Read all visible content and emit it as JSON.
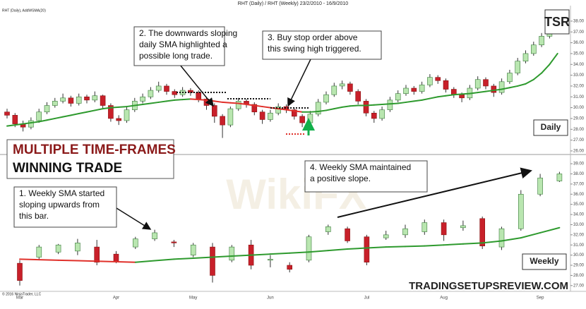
{
  "header": "RHT (Daily) / RHT (Weekly)  23/2/2010 - 16/9/2010",
  "banner": [
    "MULTIPLE TIME-FRAMES",
    "WINNING TRADE"
  ],
  "logo": "TSR",
  "footer": "TRADINGSETUPSREVIEW.COM",
  "copyright": "© 2016 NinjaTrader, LLC",
  "watermark": "WikiFX",
  "chart_data": [
    {
      "type": "candlestick",
      "subtitle": "RHT (Daily), AddWSMA(20)",
      "panel_label": "Daily",
      "up_color": "#b9e6b0",
      "down_color": "#c8202a",
      "sma_up_color": "#2e9a2e",
      "sma_down_color": "#e0302a",
      "ylim": [
        25.8,
        39.3
      ],
      "yticks": [
        {
          "value": 26,
          "label": "26.00"
        },
        {
          "value": 27,
          "label": "27.00"
        },
        {
          "value": 28,
          "label": "28.00"
        },
        {
          "value": 29,
          "label": "29.00"
        },
        {
          "value": 30,
          "label": "30.00"
        },
        {
          "value": 31,
          "label": "31.00"
        },
        {
          "value": 32,
          "label": "32.00"
        },
        {
          "value": 33,
          "label": "33.00"
        },
        {
          "value": 34,
          "label": "34.00"
        },
        {
          "value": 35,
          "label": "35.00"
        },
        {
          "value": 36,
          "label": "36.00"
        },
        {
          "value": 37,
          "label": "37.00"
        },
        {
          "value": 38,
          "label": "38.00"
        }
      ],
      "candles": [
        [
          29.6,
          29.9,
          29.0,
          29.3
        ],
        [
          29.3,
          29.5,
          28.2,
          28.5
        ],
        [
          28.5,
          28.8,
          27.8,
          28.2
        ],
        [
          28.2,
          29.1,
          28.0,
          28.8
        ],
        [
          28.8,
          29.9,
          28.6,
          29.6
        ],
        [
          29.6,
          30.5,
          29.4,
          30.2
        ],
        [
          30.2,
          30.9,
          30.0,
          30.6
        ],
        [
          30.6,
          31.3,
          30.4,
          30.9
        ],
        [
          30.9,
          31.1,
          30.1,
          30.4
        ],
        [
          30.4,
          31.3,
          30.2,
          31.0
        ],
        [
          31.0,
          31.2,
          30.4,
          30.7
        ],
        [
          30.7,
          31.5,
          30.5,
          31.1
        ],
        [
          31.1,
          31.2,
          29.9,
          30.2
        ],
        [
          30.2,
          30.4,
          28.7,
          29.0
        ],
        [
          29.0,
          29.3,
          28.4,
          28.8
        ],
        [
          28.8,
          30.1,
          28.6,
          29.8
        ],
        [
          29.8,
          30.9,
          29.6,
          30.6
        ],
        [
          30.6,
          31.3,
          30.4,
          31.0
        ],
        [
          31.0,
          31.9,
          30.8,
          31.6
        ],
        [
          31.6,
          32.4,
          31.4,
          32.0
        ],
        [
          32.0,
          32.2,
          31.2,
          31.5
        ],
        [
          31.5,
          31.7,
          30.9,
          31.2
        ],
        [
          31.2,
          31.9,
          31.0,
          31.6
        ],
        [
          31.6,
          31.8,
          31.1,
          31.4
        ],
        [
          31.4,
          31.6,
          30.5,
          30.8
        ],
        [
          30.8,
          31.0,
          29.8,
          30.2
        ],
        [
          30.2,
          30.4,
          28.6,
          29.2
        ],
        [
          29.2,
          29.4,
          27.2,
          28.4
        ],
        [
          28.4,
          30.1,
          28.2,
          29.9
        ],
        [
          29.9,
          30.9,
          29.7,
          30.6
        ],
        [
          30.6,
          30.8,
          30.0,
          30.3
        ],
        [
          30.3,
          30.5,
          29.3,
          29.6
        ],
        [
          29.6,
          29.8,
          28.5,
          28.9
        ],
        [
          28.9,
          29.8,
          28.7,
          29.5
        ],
        [
          29.5,
          30.4,
          29.3,
          30.1
        ],
        [
          30.1,
          30.3,
          29.5,
          29.8
        ],
        [
          29.8,
          30.0,
          28.9,
          29.2
        ],
        [
          29.2,
          29.4,
          28.2,
          28.6
        ],
        [
          28.6,
          29.7,
          28.4,
          29.4
        ],
        [
          29.4,
          30.8,
          29.2,
          30.5
        ],
        [
          30.5,
          31.5,
          30.3,
          31.2
        ],
        [
          31.2,
          32.3,
          31.0,
          32.0
        ],
        [
          32.0,
          32.5,
          31.7,
          32.2
        ],
        [
          32.2,
          32.4,
          31.2,
          31.5
        ],
        [
          31.5,
          31.7,
          30.3,
          30.6
        ],
        [
          30.6,
          30.8,
          29.2,
          29.5
        ],
        [
          29.5,
          29.7,
          28.6,
          29.0
        ],
        [
          29.0,
          30.1,
          28.8,
          29.8
        ],
        [
          29.8,
          31.0,
          29.6,
          30.7
        ],
        [
          30.7,
          31.6,
          30.5,
          31.3
        ],
        [
          31.3,
          32.1,
          31.1,
          31.8
        ],
        [
          31.8,
          32.0,
          31.2,
          31.5
        ],
        [
          31.5,
          32.4,
          31.3,
          32.1
        ],
        [
          32.1,
          33.1,
          31.9,
          32.8
        ],
        [
          32.8,
          33.0,
          32.2,
          32.5
        ],
        [
          32.5,
          32.7,
          31.4,
          31.7
        ],
        [
          31.7,
          31.9,
          30.9,
          31.2
        ],
        [
          31.2,
          31.4,
          30.5,
          30.9
        ],
        [
          30.9,
          32.1,
          30.7,
          31.8
        ],
        [
          31.8,
          32.9,
          31.6,
          32.6
        ],
        [
          32.6,
          32.8,
          31.7,
          32.0
        ],
        [
          32.0,
          32.2,
          31.0,
          31.4
        ],
        [
          31.4,
          32.7,
          31.2,
          32.4
        ],
        [
          32.4,
          33.5,
          32.2,
          33.2
        ],
        [
          33.2,
          34.6,
          33.0,
          34.3
        ],
        [
          34.3,
          35.3,
          34.1,
          35.0
        ],
        [
          35.0,
          36.1,
          34.8,
          35.8
        ],
        [
          35.8,
          36.9,
          35.6,
          36.6
        ],
        [
          36.6,
          37.8,
          36.4,
          37.5
        ],
        [
          37.5,
          38.2,
          37.2,
          37.9
        ]
      ],
      "sma": [
        28.3,
        28.4,
        28.5,
        28.6,
        28.7,
        28.85,
        29.0,
        29.15,
        29.3,
        29.45,
        29.6,
        29.75,
        29.9,
        30.0,
        30.05,
        30.1,
        30.2,
        30.3,
        30.4,
        30.5,
        30.6,
        30.7,
        30.75,
        30.8,
        30.75,
        30.7,
        30.6,
        30.5,
        30.45,
        30.4,
        30.3,
        30.2,
        30.1,
        30.0,
        29.9,
        29.8,
        29.7,
        29.6,
        29.6,
        29.65,
        29.75,
        29.9,
        30.05,
        30.15,
        30.2,
        30.2,
        30.25,
        30.3,
        30.35,
        30.4,
        30.5,
        30.6,
        30.7,
        30.85,
        31.0,
        31.1,
        31.2,
        31.25,
        31.3,
        31.4,
        31.5,
        31.6,
        31.7,
        31.85,
        32.0,
        32.2,
        32.6,
        33.2,
        34.0,
        35.0
      ],
      "annotations": [
        [
          "2. The downwards sloping",
          "daily SMA highlighted a",
          "possible long trade."
        ],
        [
          "3. Buy stop order above",
          "this swing high triggered."
        ]
      ]
    },
    {
      "type": "candlestick",
      "panel_label": "Weekly",
      "up_color": "#b9e6b0",
      "down_color": "#c8202a",
      "sma_up_color": "#2e9a2e",
      "sma_down_color": "#e0302a",
      "ylim": [
        26.5,
        39.7
      ],
      "yticks": [
        {
          "value": 27,
          "label": "27.00"
        },
        {
          "value": 28,
          "label": "28.00"
        },
        {
          "value": 29,
          "label": "29.00"
        },
        {
          "value": 30,
          "label": "30.00"
        },
        {
          "value": 31,
          "label": "31.00"
        },
        {
          "value": 32,
          "label": "32.00"
        },
        {
          "value": 33,
          "label": "33.00"
        },
        {
          "value": 34,
          "label": "34.00"
        },
        {
          "value": 35,
          "label": "35.00"
        },
        {
          "value": 36,
          "label": "36.00"
        },
        {
          "value": 37,
          "label": "37.00"
        },
        {
          "value": 38,
          "label": "38.00"
        },
        {
          "value": 39,
          "label": "39.00"
        }
      ],
      "categories": [
        "Mar",
        null,
        null,
        null,
        null,
        "Apr",
        null,
        null,
        null,
        "May",
        null,
        null,
        null,
        "Jun",
        null,
        null,
        null,
        null,
        "Jul",
        null,
        null,
        null,
        "Aug",
        null,
        null,
        null,
        null,
        "Sep",
        null
      ],
      "candles": [
        [
          29.2,
          29.5,
          27.0,
          27.5
        ],
        [
          29.8,
          31.0,
          29.6,
          30.8
        ],
        [
          30.3,
          31.1,
          30.1,
          31.0
        ],
        [
          30.4,
          31.6,
          30.0,
          31.2
        ],
        [
          30.8,
          31.5,
          29.0,
          29.3
        ],
        [
          30.1,
          30.4,
          29.2,
          29.4
        ],
        [
          30.8,
          31.8,
          30.6,
          31.6
        ],
        [
          31.6,
          32.5,
          31.4,
          32.2
        ],
        [
          31.3,
          31.5,
          30.8,
          31.2
        ],
        [
          30.0,
          31.2,
          29.8,
          31.0
        ],
        [
          30.8,
          31.2,
          27.3,
          28.0
        ],
        [
          29.5,
          31.0,
          29.3,
          30.8
        ],
        [
          31.0,
          31.5,
          28.6,
          29.0
        ],
        [
          29.5,
          30.0,
          28.8,
          29.6
        ],
        [
          29.0,
          29.3,
          28.3,
          28.6
        ],
        [
          29.5,
          32.0,
          29.3,
          31.8
        ],
        [
          32.3,
          33.0,
          32.0,
          32.8
        ],
        [
          32.6,
          32.8,
          31.2,
          31.4
        ],
        [
          31.8,
          32.0,
          29.0,
          29.3
        ],
        [
          31.7,
          32.4,
          31.5,
          32.0
        ],
        [
          32.0,
          33.0,
          31.7,
          32.6
        ],
        [
          32.3,
          33.5,
          32.0,
          33.2
        ],
        [
          33.2,
          33.5,
          31.4,
          32.0
        ],
        [
          32.7,
          33.4,
          32.4,
          32.9
        ],
        [
          33.6,
          33.8,
          30.6,
          30.9
        ],
        [
          30.8,
          32.8,
          30.5,
          32.6
        ],
        [
          32.6,
          36.4,
          32.4,
          36.0
        ],
        [
          36.0,
          38.0,
          35.8,
          37.6
        ],
        [
          37.3,
          38.2,
          37.2,
          38.0
        ]
      ],
      "sma": [
        29.6,
        29.55,
        29.5,
        29.45,
        29.4,
        29.35,
        29.3,
        29.45,
        29.6,
        29.7,
        29.8,
        29.9,
        30.0,
        30.1,
        30.2,
        30.3,
        30.45,
        30.6,
        30.7,
        30.8,
        30.85,
        30.9,
        31.0,
        31.1,
        31.2,
        31.4,
        31.7,
        32.2,
        32.7
      ],
      "annotations": [
        [
          "1. Weekly SMA started",
          "sloping upwards from",
          "this bar."
        ],
        [
          "4. Weekly SMA maintained",
          "a positive slope."
        ]
      ]
    }
  ]
}
